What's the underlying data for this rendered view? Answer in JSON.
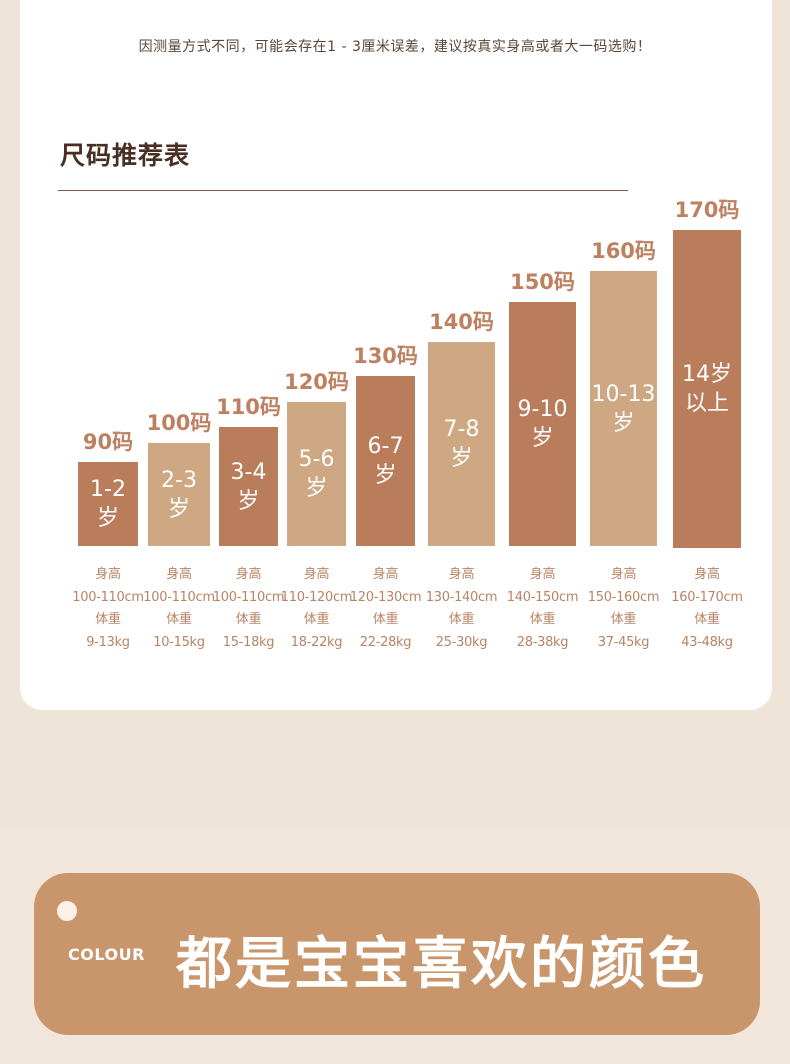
{
  "note": "因测量方式不同，可能会存在1 - 3厘米误差，建议按真实身高或者大一码选购！",
  "title": "尺码推荐表",
  "height_label": "身高",
  "weight_label": "体重",
  "sizes": [
    {
      "code": "90码",
      "age": "1-2\n岁",
      "height": "100-110cm",
      "weight": "9-13kg",
      "color": "#b97d5c"
    },
    {
      "code": "100码",
      "age": "2-3\n岁",
      "height": "100-110cm",
      "weight": "10-15kg",
      "color": "#cda882"
    },
    {
      "code": "110码",
      "age": "3-4\n岁",
      "height": "100-110cm",
      "weight": "15-18kg",
      "color": "#b97d5c"
    },
    {
      "code": "120码",
      "age": "5-6\n岁",
      "height": "110-120cm",
      "weight": "18-22kg",
      "color": "#cda882"
    },
    {
      "code": "130码",
      "age": "6-7\n岁",
      "height": "120-130cm",
      "weight": "22-28kg",
      "color": "#b97d5c"
    },
    {
      "code": "140码",
      "age": "7-8\n岁",
      "height": "130-140cm",
      "weight": "25-30kg",
      "color": "#cda882"
    },
    {
      "code": "150码",
      "age": "9-10\n岁",
      "height": "140-150cm",
      "weight": "28-38kg",
      "color": "#b97d5c"
    },
    {
      "code": "160码",
      "age": "10-13\n岁",
      "height": "150-160cm",
      "weight": "37-45kg",
      "color": "#cda882"
    },
    {
      "code": "170码",
      "age": "14岁\n以上",
      "height": "160-170cm",
      "weight": "43-48kg",
      "color": "#b97d5c"
    }
  ],
  "banner": {
    "tag": "COLOUR",
    "slogan": "都是宝宝喜欢的颜色"
  }
}
